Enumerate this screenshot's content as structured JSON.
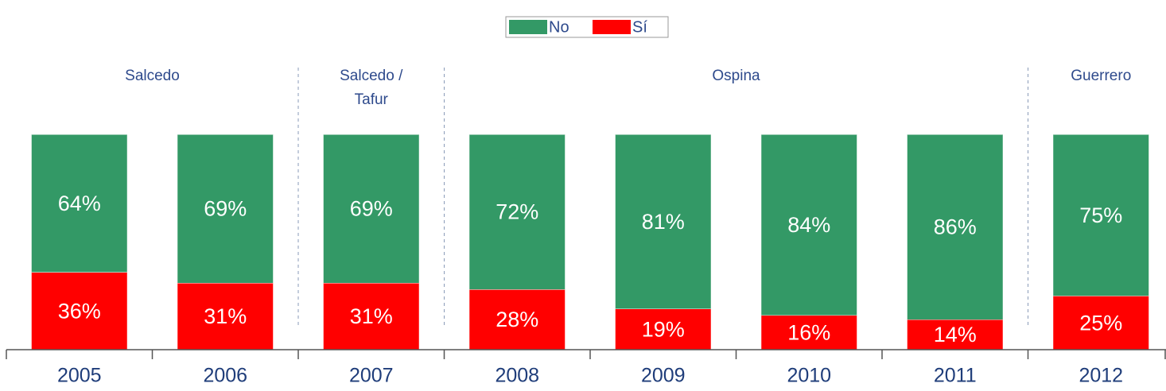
{
  "chart_data": {
    "type": "stacked_bar",
    "categories": [
      "2005",
      "2006",
      "2007",
      "2008",
      "2009",
      "2010",
      "2011",
      "2012"
    ],
    "series": [
      {
        "name": "Sí",
        "color": "#ff0000",
        "values": [
          36,
          31,
          31,
          28,
          19,
          16,
          14,
          25
        ],
        "value_labels": [
          "36%",
          "31%",
          "31%",
          "28%",
          "19%",
          "16%",
          "14%",
          "25%"
        ]
      },
      {
        "name": "No",
        "color": "#339966",
        "values": [
          64,
          69,
          69,
          72,
          81,
          84,
          86,
          75
        ],
        "value_labels": [
          "64%",
          "69%",
          "69%",
          "72%",
          "81%",
          "84%",
          "86%",
          "75%"
        ]
      }
    ],
    "legend_order": [
      "No",
      "Sí"
    ],
    "legend_position": "top",
    "groups": [
      {
        "lines": [
          "Salcedo"
        ],
        "categories": [
          "2005",
          "2006"
        ]
      },
      {
        "lines": [
          "Salcedo /",
          "Tafur"
        ],
        "categories": [
          "2007"
        ]
      },
      {
        "lines": [
          "Ospina"
        ],
        "categories": [
          "2008",
          "2009",
          "2010",
          "2011"
        ]
      },
      {
        "lines": [
          "Guerrero"
        ],
        "categories": [
          "2012"
        ]
      }
    ]
  }
}
